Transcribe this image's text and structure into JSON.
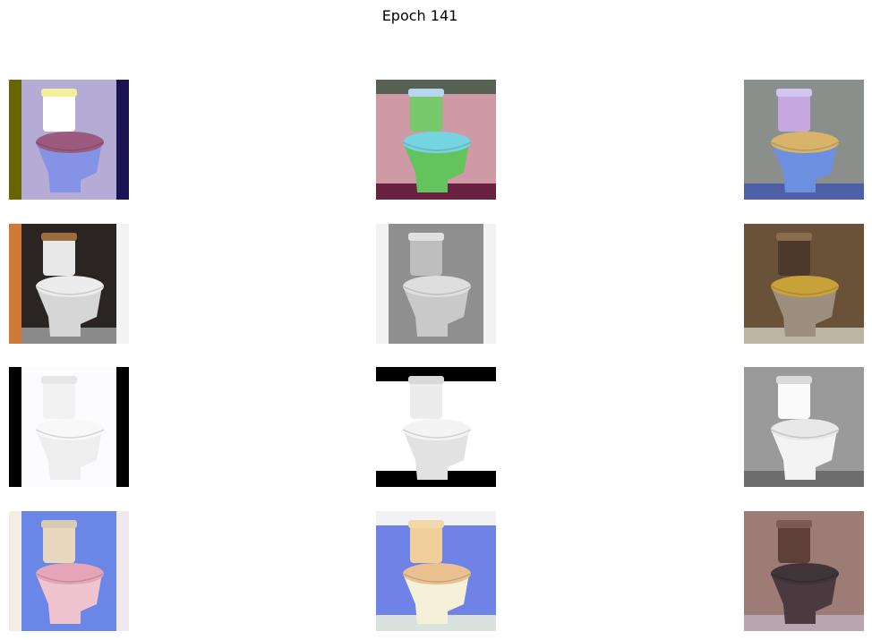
{
  "figure": {
    "title": "Epoch 141"
  },
  "grid": {
    "rows": 4,
    "cols": 3,
    "images": [
      {
        "name": "toilet-lavender-square",
        "bg": "#b5acd6",
        "body": "#8593e6",
        "seat": "#9c5a7e",
        "tank": "#ffffff",
        "lid": "#f2f09a",
        "left_bar": "#666600",
        "right_bar": "#1b1452",
        "floor": ""
      },
      {
        "name": "toilet-green-on-pink",
        "bg": "#cf9aa6",
        "body": "#63c45e",
        "seat": "#76d3e0",
        "tank": "#78c96b",
        "lid": "#b7d7f0",
        "left_bar": "",
        "right_bar": "",
        "top_bar": "#576254",
        "floor": "#6a2140"
      },
      {
        "name": "toilet-purple-bathroom",
        "bg": "#8a8f8c",
        "body": "#6d8fe0",
        "seat": "#d8b36a",
        "tank": "#c7a7e0",
        "lid": "#d0c6f0",
        "left_bar": "",
        "right_bar": "",
        "floor": "#4f5fa6"
      },
      {
        "name": "toilet-gray-dark-wall",
        "bg": "#2a2522",
        "body": "#d6d6d6",
        "seat": "#ececec",
        "tank": "#e8e8e8",
        "lid": "#9b6e40",
        "left_bar": "#d07a3a",
        "right_bar": "#f3f3f3",
        "floor": "#8a8a8a"
      },
      {
        "name": "toilet-gray-blurred",
        "bg": "#8f8f8f",
        "body": "#c9c9c9",
        "seat": "#dedede",
        "tank": "#bdbdbd",
        "lid": "#e0e0e0",
        "left_bar": "#f2f2f2",
        "right_bar": "#f2f2f2",
        "floor": ""
      },
      {
        "name": "toilet-brown-bathroom",
        "bg": "#6a5238",
        "body": "#9c8f7d",
        "seat": "#c9a13a",
        "tank": "#4b3a2c",
        "lid": "#8a6d4a",
        "left_bar": "",
        "right_bar": "",
        "floor": "#bdb5a3"
      },
      {
        "name": "toilet-white-square",
        "bg": "#fcfbfd",
        "body": "#eeeeee",
        "seat": "#f8f8f8",
        "tank": "#f2f2f2",
        "lid": "#e6e6e6",
        "left_bar": "#000000",
        "right_bar": "#000000",
        "floor": ""
      },
      {
        "name": "toilet-white-letterbox",
        "bg": "#ffffff",
        "body": "#e2e2e2",
        "seat": "#f4f4f4",
        "tank": "#ececec",
        "lid": "#d8d8d8",
        "left_bar": "",
        "right_bar": "",
        "top_bar": "#000000",
        "floor": "#000000"
      },
      {
        "name": "toilet-white-gray-bathroom",
        "bg": "#9a9a9a",
        "body": "#f3f3f3",
        "seat": "#e8e8e8",
        "tank": "#fafafa",
        "lid": "#dadada",
        "left_bar": "",
        "right_bar": "",
        "floor": "#6d6d6d"
      },
      {
        "name": "toilet-pink-blue-bg",
        "bg": "#6a86e6",
        "body": "#f0c4cf",
        "seat": "#e6a4b8",
        "tank": "#e9d8c0",
        "lid": "#d8cbb0",
        "left_bar": "#f1efe4",
        "right_bar": "#f1e8ee",
        "floor": ""
      },
      {
        "name": "toilet-peach-blue-bg",
        "bg": "#6f82e6",
        "body": "#f5f0d8",
        "seat": "#e9c090",
        "tank": "#f0cf9a",
        "lid": "#f3d9a8",
        "left_bar": "",
        "right_bar": "",
        "top_bar": "#f2f2f6",
        "floor": "#d9e2dc"
      },
      {
        "name": "toilet-dark-mauve-bathroom",
        "bg": "#9c7c74",
        "body": "#4a3a40",
        "seat": "#3f3438",
        "tank": "#5e3f3a",
        "lid": "#7a5b55",
        "left_bar": "",
        "right_bar": "",
        "floor": "#b7a5b0"
      }
    ]
  }
}
